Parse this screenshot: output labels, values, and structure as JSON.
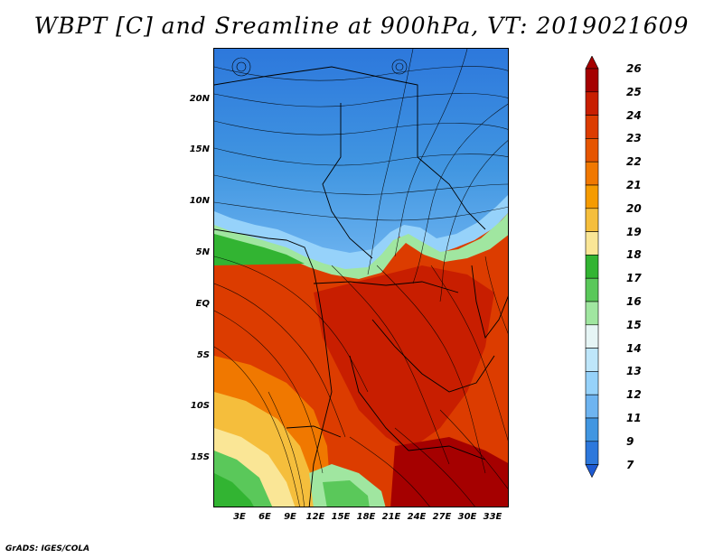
{
  "title": "WBPT [C] and Sreamline at 900hPa, VT: 2019021609",
  "footer": "GrADS: IGES/COLA",
  "lat_labels": [
    "20N",
    "15N",
    "10N",
    "5N",
    "EQ",
    "5S",
    "10S",
    "15S"
  ],
  "lon_labels": [
    "3E",
    "6E",
    "9E",
    "12E",
    "15E",
    "18E",
    "21E",
    "24E",
    "27E",
    "30E",
    "33E"
  ],
  "colorbar": {
    "levels": [
      "26",
      "25",
      "24",
      "23",
      "22",
      "21",
      "20",
      "19",
      "18",
      "17",
      "16",
      "15",
      "14",
      "13",
      "12",
      "11",
      "9",
      "7"
    ],
    "colors": [
      "#a50000",
      "#c81e00",
      "#dc3c00",
      "#e65500",
      "#f07800",
      "#f59b00",
      "#f5be3c",
      "#fae696",
      "#32b432",
      "#5ac85a",
      "#a0e6a0",
      "#e6f5f5",
      "#bee6fa",
      "#96d2fa",
      "#6eb4f0",
      "#4196e1",
      "#2d78dc",
      "#1e5ad2"
    ]
  },
  "map": {
    "region": "Central Africa",
    "lon_range": [
      0,
      35
    ],
    "lat_range": [
      -19,
      25
    ],
    "field": "wet bulb potential temperature",
    "overlay": "streamlines"
  }
}
